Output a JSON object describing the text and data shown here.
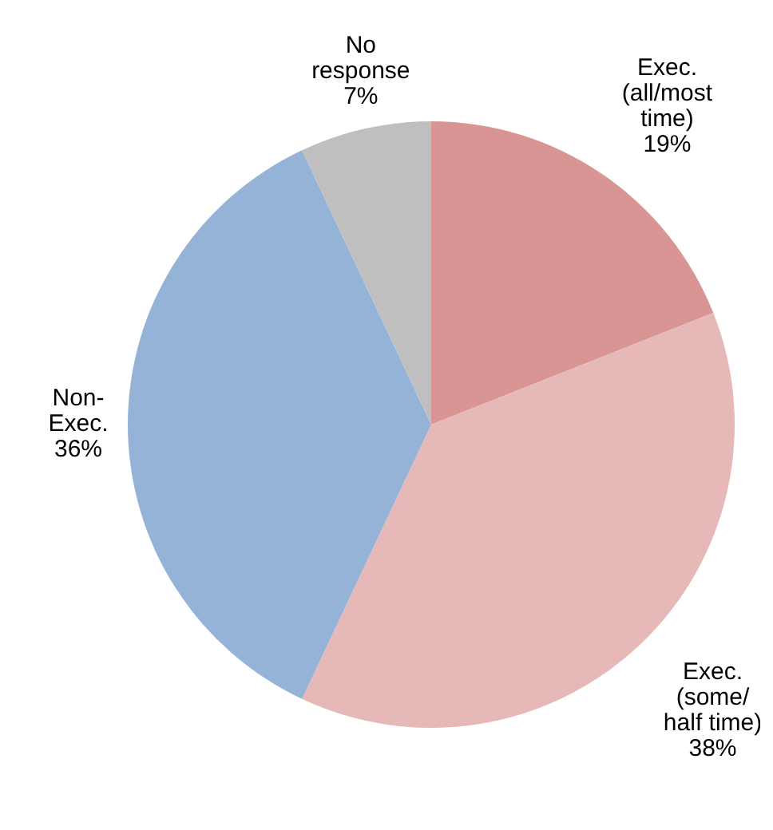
{
  "chart_data": {
    "type": "pie",
    "categories": [
      "Exec.\n(all/most\ntime)",
      "Exec.\n(some/\nhalf time)",
      "Non-\nExec.",
      "No\nresponse"
    ],
    "values": [
      19,
      38,
      36,
      7
    ],
    "value_labels": [
      "19%",
      "38%",
      "36%",
      "7%"
    ],
    "colors": [
      "#d99594",
      "#e6b8b7",
      "#95b3d7",
      "#bfbfbf"
    ]
  }
}
